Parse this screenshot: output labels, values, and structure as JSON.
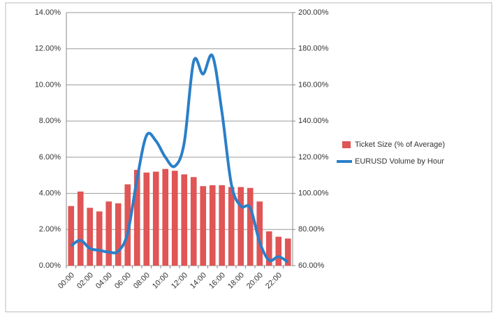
{
  "chart_data": {
    "type": "bar-line",
    "categories": [
      "00:00",
      null,
      "02:00",
      null,
      "04:00",
      null,
      "06:00",
      null,
      "08:00",
      null,
      "10:00",
      null,
      "12:00",
      null,
      "14:00",
      null,
      "16:00",
      null,
      "18:00",
      null,
      "20:00",
      null,
      "22:00",
      null
    ],
    "series": [
      {
        "name": "Ticket Size (% of Average)",
        "type": "bar",
        "axis": "y2",
        "color": "#e05555",
        "values": [
          93,
          101,
          92,
          90,
          95.5,
          94.5,
          105,
          113,
          111.5,
          112,
          113.5,
          112.5,
          110.5,
          109,
          104,
          104.5,
          104.5,
          103.5,
          103.5,
          103,
          95.5,
          79,
          76,
          75
        ]
      },
      {
        "name": "EURUSD Volume by Hour",
        "type": "line",
        "axis": "y",
        "color": "#2a7fc8",
        "values": [
          1.1,
          1.4,
          0.95,
          0.85,
          0.75,
          0.8,
          1.8,
          4.8,
          7.2,
          6.9,
          6.0,
          5.5,
          6.8,
          11.3,
          10.6,
          11.6,
          8.5,
          4.5,
          3.3,
          3.2,
          1.3,
          0.3,
          0.5,
          0.2
        ]
      }
    ],
    "ylim": [
      0,
      14
    ],
    "yticks": [
      {
        "value": 0,
        "label": "0.00%"
      },
      {
        "value": 2,
        "label": "2.00%"
      },
      {
        "value": 4,
        "label": "4.00%"
      },
      {
        "value": 6,
        "label": "6.00%"
      },
      {
        "value": 8,
        "label": "8.00%"
      },
      {
        "value": 10,
        "label": "10.00%"
      },
      {
        "value": 12,
        "label": "12.00%"
      },
      {
        "value": 14,
        "label": "14.00%"
      }
    ],
    "y2lim": [
      60,
      200
    ],
    "y2ticks": [
      {
        "value": 60,
        "label": "60.00%"
      },
      {
        "value": 80,
        "label": "80.00%"
      },
      {
        "value": 100,
        "label": "100.00%"
      },
      {
        "value": 120,
        "label": "120.00%"
      },
      {
        "value": 140,
        "label": "140.00%"
      },
      {
        "value": 160,
        "label": "160.00%"
      },
      {
        "value": 180,
        "label": "180.00%"
      },
      {
        "value": 200,
        "label": "200.00%"
      }
    ],
    "grid": true,
    "legend": "right"
  }
}
